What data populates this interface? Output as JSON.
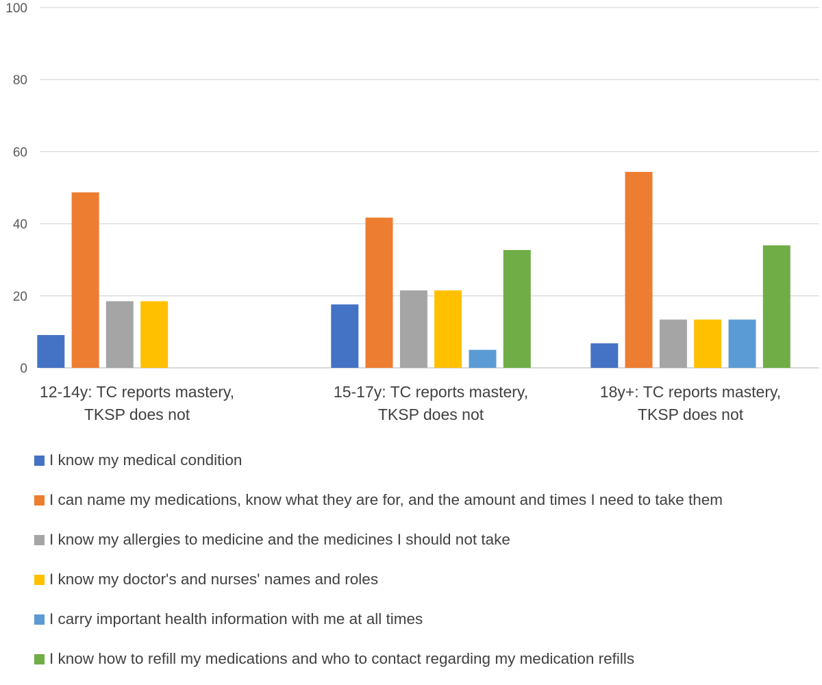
{
  "chart_data": {
    "type": "bar",
    "title": "",
    "xlabel": "",
    "ylabel": "",
    "ylim": [
      0,
      100
    ],
    "yticks": [
      0,
      20,
      40,
      60,
      80,
      100
    ],
    "grid": true,
    "legend_position": "bottom",
    "categories": [
      [
        "12-14y: TC reports mastery,",
        "TKSP does not"
      ],
      [
        "15-17y: TC reports mastery,",
        "TKSP does not"
      ],
      [
        "18y+: TC reports mastery,",
        "TKSP does not"
      ]
    ],
    "series": [
      {
        "name": "I know my medical condition",
        "color": "#4472c4",
        "values": [
          9.1,
          17.6,
          6.8
        ]
      },
      {
        "name": "I can name my medications, know what they are for, and the amount and times I need to take them",
        "color": "#ed7d31",
        "values": [
          48.7,
          41.7,
          54.4
        ]
      },
      {
        "name": "I know my allergies to medicine and the medicines I should not take",
        "color": "#a5a5a5",
        "values": [
          18.5,
          21.5,
          13.4
        ]
      },
      {
        "name": "I know my doctor's and nurses' names and roles",
        "color": "#ffc000",
        "values": [
          18.5,
          21.5,
          13.4
        ]
      },
      {
        "name": "I carry important health information with me at all times",
        "color": "#5b9bd5",
        "values": [
          0,
          5.0,
          13.4
        ]
      },
      {
        "name": "I know how to refill my medications and who to contact regarding my medication refills",
        "color": "#70ad47",
        "values": [
          0,
          32.7,
          34.0
        ]
      }
    ]
  }
}
